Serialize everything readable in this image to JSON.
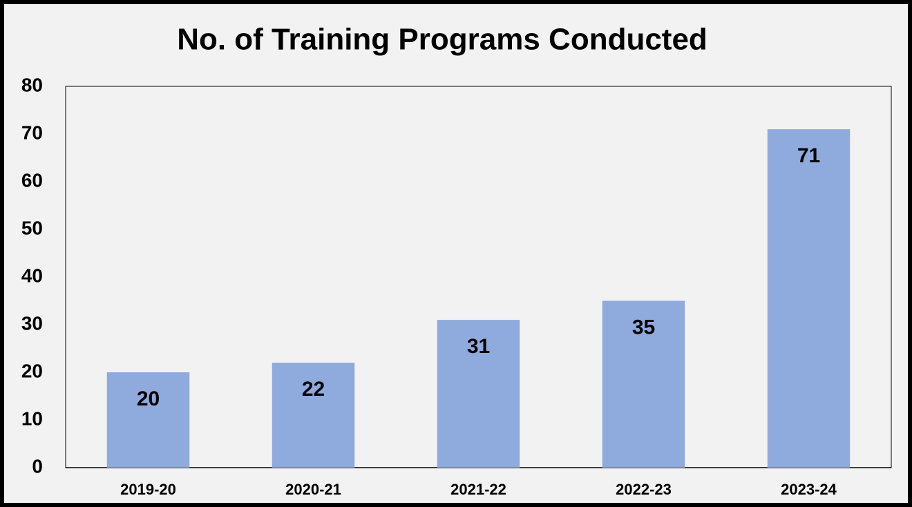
{
  "chart_data": {
    "type": "bar",
    "title": "No. of Training Programs Conducted",
    "categories": [
      "2019-20",
      "2020-21",
      "2021-22",
      "2022-23",
      "2023-24"
    ],
    "values": [
      20,
      22,
      31,
      35,
      71
    ],
    "color": "#8faadc",
    "ylim": [
      0,
      80
    ],
    "yticks": [
      0,
      10,
      20,
      30,
      40,
      50,
      60,
      70,
      80
    ],
    "grid": false
  }
}
